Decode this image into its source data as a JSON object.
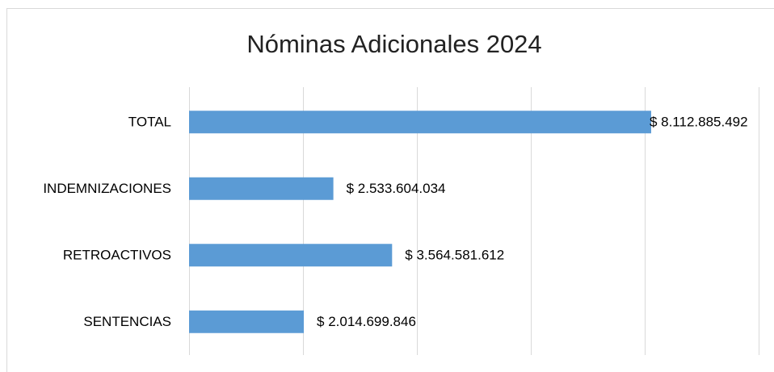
{
  "chart_data": {
    "type": "bar",
    "orientation": "horizontal",
    "title": "Nóminas Adicionales 2024",
    "categories": [
      "TOTAL",
      "INDEMNIZACIONES",
      "RETROACTIVOS",
      "SENTENCIAS"
    ],
    "values": [
      8112885492,
      2533604034,
      3564581612,
      2014699846
    ],
    "value_labels": [
      "$ 8.112.885.492",
      "$ 2.533.604.034",
      "$ 3.564.581.612",
      "$ 2.014.699.846"
    ],
    "color": "#5b9bd5",
    "xlim": [
      0,
      10000000000
    ],
    "xticks": [
      0,
      2000000000,
      4000000000,
      6000000000,
      8000000000,
      10000000000
    ],
    "grid": true
  }
}
